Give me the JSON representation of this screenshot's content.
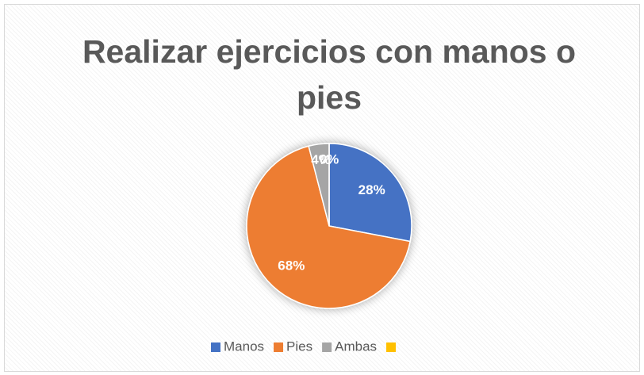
{
  "chart_data": {
    "type": "pie",
    "title": "Realizar ejercicios con manos o pies",
    "categories": [
      "Manos",
      "Pies",
      "Ambas",
      null
    ],
    "values": [
      28,
      68,
      4,
      0
    ],
    "value_labels": [
      "28%",
      "68%",
      "4%",
      "0%"
    ],
    "colors": [
      "#4472c4",
      "#ed7d31",
      "#a5a5a5",
      "#ffc000"
    ],
    "legend": "bottom"
  }
}
